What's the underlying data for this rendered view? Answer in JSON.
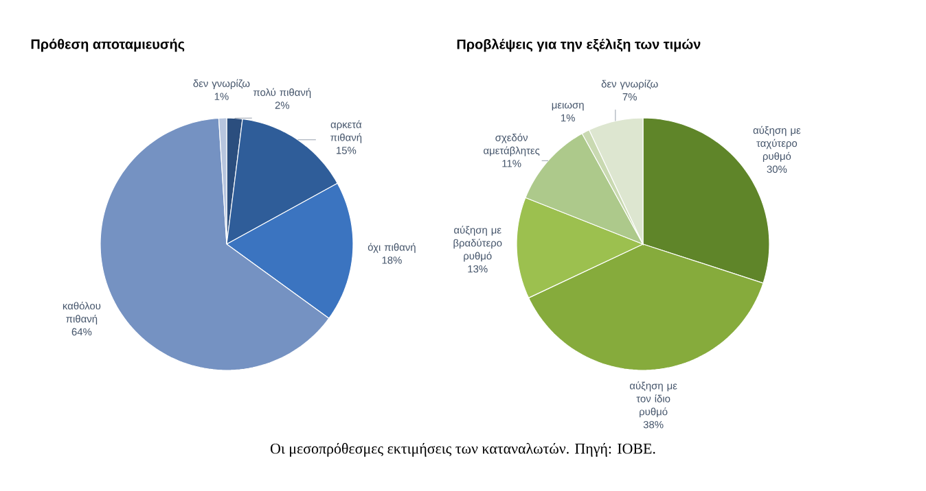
{
  "chart_data": [
    {
      "type": "pie",
      "title": "Πρόθεση αποταμιευσής",
      "categories": [
        "πολύ πιθανή",
        "αρκετά πιθανή",
        "όχι πιθανή",
        "καθόλου πιθανή",
        "δεν γνωρίζω"
      ],
      "values": [
        2,
        15,
        18,
        64,
        1
      ],
      "value_labels": [
        "2%",
        "15%",
        "18%",
        "64%",
        "1%"
      ],
      "colors": [
        "#2b4e7e",
        "#2f5d99",
        "#3b74c0",
        "#7592c2",
        "#b7c5de"
      ]
    },
    {
      "type": "pie",
      "title": "Προβλέψεις για την εξέλιξη των τιμών",
      "categories": [
        "αύξηση με ταχύτερο ρυθμό",
        "αύξηση με τον ίδιο ρυθμό",
        "αύξηση με βραδύτερο ρυθμό",
        "σχεδόν αμετάβλητες",
        "μειωση",
        "δεν γνωρίζω"
      ],
      "values": [
        30,
        38,
        13,
        11,
        1,
        7
      ],
      "value_labels": [
        "30%",
        "38%",
        "13%",
        "11%",
        "1%",
        "7%"
      ],
      "colors": [
        "#5f8529",
        "#86ab3c",
        "#9cc04f",
        "#adc98b",
        "#c9d9b1",
        "#dde6d0"
      ],
      "annotations": [
        "Οι μεσοπρόθεσμες εκτιμήσεις των καταναλωτών. Πηγή: ΙΟΒΕ."
      ]
    }
  ]
}
